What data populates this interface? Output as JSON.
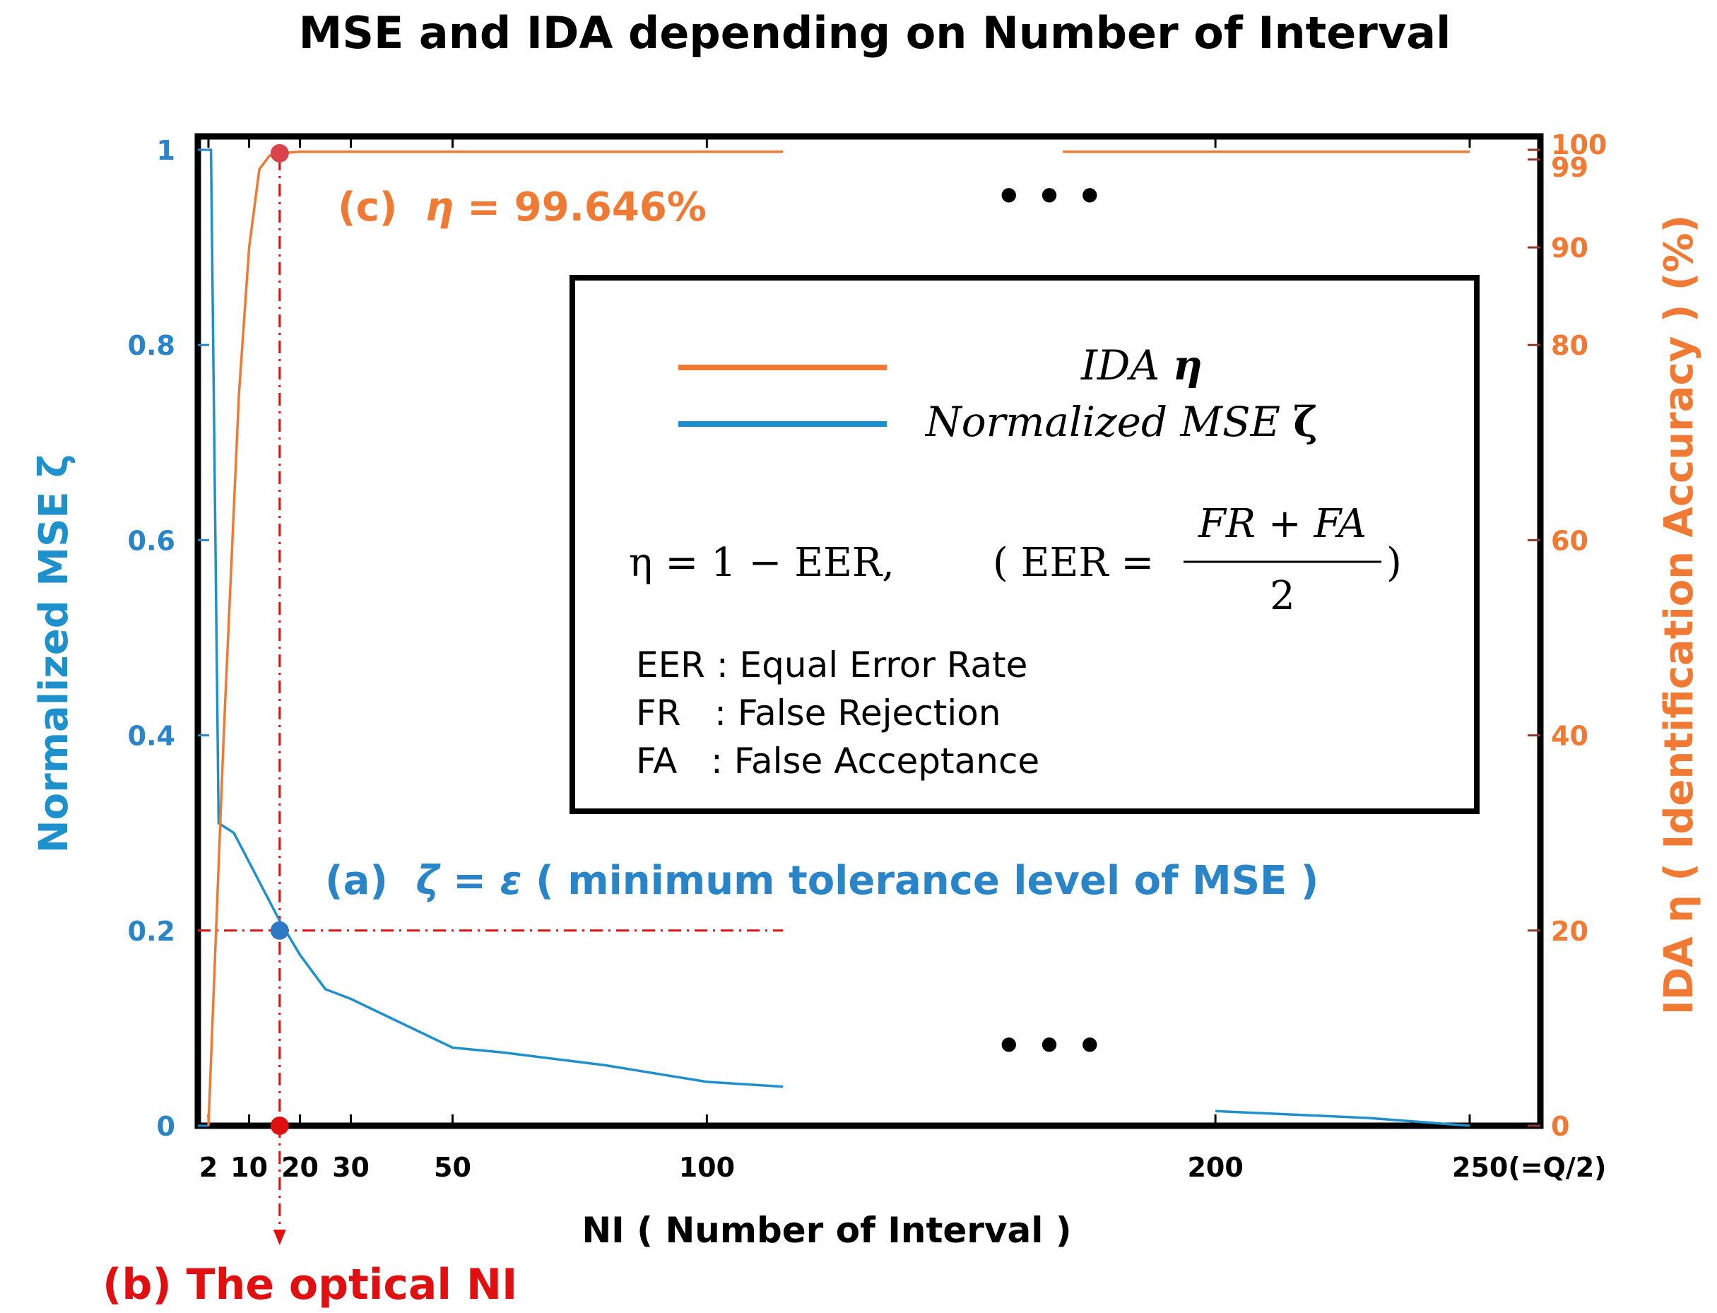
{
  "chart_data": {
    "type": "line",
    "title": "MSE and IDA depending on Number of Interval",
    "xlabel": "NI ( Number of Interval )",
    "ylabel_left": "Normalized MSE ζ",
    "ylabel_right": "IDA η ( Identification Accuracy ) (%)",
    "x_ticks": [
      {
        "value": 2,
        "label": "2"
      },
      {
        "value": 10,
        "label": "10"
      },
      {
        "value": 20,
        "label": "20"
      },
      {
        "value": 30,
        "label": "30"
      },
      {
        "value": 50,
        "label": "50"
      },
      {
        "value": 100,
        "label": "100"
      },
      {
        "value": 200,
        "label": "200"
      },
      {
        "value": 250,
        "label": "250(=Q/2)"
      }
    ],
    "y_left_ticks": [
      {
        "value": 0,
        "label": "0"
      },
      {
        "value": 0.2,
        "label": "0.2"
      },
      {
        "value": 0.4,
        "label": "0.4"
      },
      {
        "value": 0.6,
        "label": "0.6"
      },
      {
        "value": 0.8,
        "label": "0.8"
      },
      {
        "value": 1,
        "label": "1"
      }
    ],
    "y_right_ticks": [
      {
        "value": 0,
        "label": "0"
      },
      {
        "value": 20,
        "label": "20"
      },
      {
        "value": 40,
        "label": "40"
      },
      {
        "value": 60,
        "label": "60"
      },
      {
        "value": 80,
        "label": "80"
      },
      {
        "value": 90,
        "label": "90"
      },
      {
        "value": 99,
        "label": "99"
      },
      {
        "value": 100,
        "label": "100"
      }
    ],
    "ylim_left": [
      0,
      1
    ],
    "ylim_right": [
      0,
      100
    ],
    "series": [
      {
        "name": "Normalized MSE ζ",
        "axis": "left",
        "color": "#1e90cc",
        "segments": [
          [
            [
              2,
              1.0
            ],
            [
              2.5,
              1.0
            ],
            [
              4,
              0.31
            ],
            [
              7,
              0.3
            ],
            [
              10,
              0.27
            ],
            [
              13,
              0.24
            ],
            [
              16,
              0.21
            ],
            [
              20,
              0.175
            ],
            [
              25,
              0.14
            ],
            [
              30,
              0.13
            ],
            [
              40,
              0.105
            ],
            [
              50,
              0.08
            ],
            [
              60,
              0.075
            ],
            [
              80,
              0.062
            ],
            [
              100,
              0.045
            ],
            [
              115,
              0.04
            ]
          ],
          [
            [
              200,
              0.015
            ],
            [
              230,
              0.008
            ],
            [
              250,
              0.0
            ]
          ]
        ]
      },
      {
        "name": "IDA η",
        "axis": "right",
        "color": "#f07a33",
        "segments": [
          [
            [
              2,
              0
            ],
            [
              5,
              40
            ],
            [
              8,
              75
            ],
            [
              10,
              90
            ],
            [
              12,
              98
            ],
            [
              14,
              99.4
            ],
            [
              16,
              99.646
            ],
            [
              20,
              99.8
            ],
            [
              115,
              99.8
            ]
          ],
          [
            [
              170,
              99.8
            ],
            [
              250,
              99.8
            ]
          ]
        ]
      }
    ],
    "markers": [
      {
        "name": "ida-point",
        "x": 16,
        "y": 99.646,
        "axis": "right",
        "color": "#d9434a"
      },
      {
        "name": "mse-point",
        "x": 16,
        "y": 0.2,
        "axis": "left",
        "color": "#2e78c4"
      },
      {
        "name": "optical-ni-point",
        "x": 16,
        "y": 0,
        "axis": "left",
        "color": "#e01010"
      }
    ],
    "reference_lines": {
      "horizontal_mse": 0.2,
      "horizontal_end_x": 115,
      "vertical_x": 16
    },
    "annotations": {
      "c": {
        "prefix": "(c)",
        "symbol": "η",
        "text": " = 99.646%"
      },
      "a": {
        "prefix": "(a)",
        "symbol": "ζ",
        "eq": " = ",
        "eps": "ε",
        "text": " ( minimum tolerance level of MSE )"
      },
      "b": "(b) The optical NI",
      "ellipsis_top": "• • •",
      "ellipsis_bottom": "• • •"
    },
    "legend": {
      "entries": [
        {
          "label": "IDA ",
          "symbol": "η",
          "color": "#f07a33"
        },
        {
          "label": "Normalized MSE ",
          "symbol": "ζ",
          "color": "#1e90cc"
        }
      ],
      "formula": {
        "lhs": "η = 1 − EER,",
        "paren_open": "( EER =",
        "numerator": "FR + FA",
        "denominator": "2",
        "paren_close": ")"
      },
      "definitions": [
        "EER : Equal Error Rate",
        "FR   : False Rejection",
        "FA   : False Acceptance"
      ]
    },
    "colors": {
      "mse": "#1e90cc",
      "mse_axis_text": "#2a85c8",
      "ida": "#f07a33",
      "ida_axis_text": "#f07a33",
      "reference": "#e01010",
      "title": "#000000"
    }
  }
}
